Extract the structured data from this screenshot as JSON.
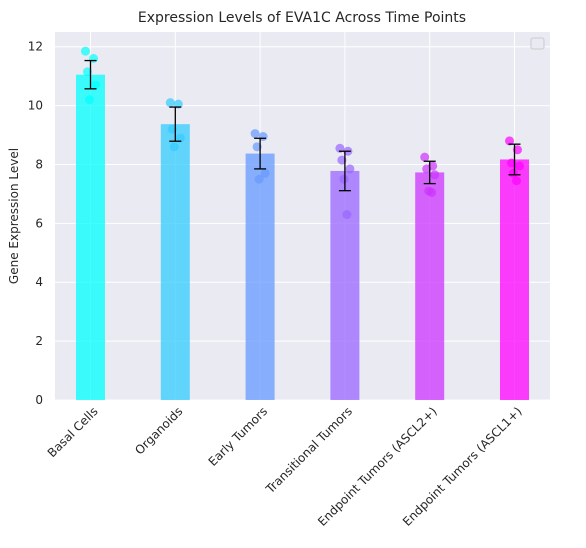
{
  "chart_data": {
    "type": "bar",
    "title": "Expression Levels of EVA1C Across Time Points",
    "xlabel": "",
    "ylabel": "Gene Expression Level",
    "ylim": [
      0,
      12.5
    ],
    "yticks": [
      0,
      2,
      4,
      6,
      8,
      10,
      12
    ],
    "grid": true,
    "legend": "top-right",
    "categories": [
      "Basal Cells",
      "Organoids",
      "Early Tumors",
      "Transitional Tumors",
      "Endpoint Tumors (ASCL2+)",
      "Endpoint Tumors (ASCL1+)"
    ],
    "values": [
      11.05,
      9.37,
      8.37,
      7.78,
      7.73,
      8.17
    ],
    "errors": [
      0.48,
      0.58,
      0.52,
      0.67,
      0.38,
      0.52
    ],
    "points": [
      [
        11.85,
        11.6,
        11.15,
        10.7,
        10.2
      ],
      [
        10.1,
        10.05,
        9.2,
        8.9,
        8.6
      ],
      [
        9.05,
        8.95,
        8.6,
        7.7,
        7.5
      ],
      [
        8.55,
        8.45,
        8.15,
        7.85,
        7.5,
        6.3
      ],
      [
        8.25,
        7.95,
        7.85,
        7.65,
        7.1,
        7.05
      ],
      [
        8.8,
        8.5,
        8.05,
        7.95,
        7.7,
        7.45
      ]
    ],
    "colors": [
      "#00ffff",
      "#33ccff",
      "#6699ff",
      "#9966ff",
      "#cc33ff",
      "#ff00ff"
    ]
  }
}
